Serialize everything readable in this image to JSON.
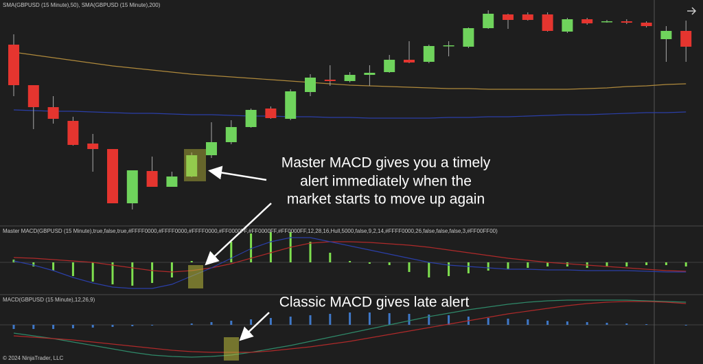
{
  "chart_data": [
    {
      "type": "candlestick",
      "title": "SMA(GBPUSD (15 Minute),50), SMA(GBPUSD (15 Minute),200)",
      "ylim": [
        0,
        330
      ],
      "open": [
        265,
        206,
        174,
        154,
        121,
        113,
        34,
        81,
        58,
        73,
        104,
        123,
        145,
        172,
        157,
        196,
        214,
        212,
        221,
        225,
        243,
        240,
        263,
        262,
        289,
        309,
        309,
        309,
        284,
        302,
        298,
        299,
        297,
        273,
        285
      ],
      "high": [
        280,
        206,
        190,
        160,
        135,
        113,
        82,
        102,
        80,
        108,
        152,
        155,
        172,
        175,
        200,
        222,
        235,
        225,
        235,
        250,
        270,
        265,
        270,
        290,
        315,
        310,
        312,
        312,
        304,
        304,
        301,
        302,
        299,
        292,
        300
      ],
      "low": [
        190,
        142,
        150,
        118,
        80,
        34,
        25,
        58,
        58,
        72,
        100,
        120,
        144,
        157,
        155,
        190,
        205,
        210,
        205,
        224,
        238,
        238,
        248,
        260,
        288,
        288,
        300,
        284,
        282,
        294,
        297,
        295,
        290,
        240,
        240
      ],
      "close": [
        206,
        174,
        157,
        119,
        113,
        34,
        82,
        58,
        73,
        104,
        123,
        145,
        170,
        158,
        197,
        217,
        212,
        221,
        224,
        243,
        239,
        263,
        264,
        289,
        310,
        301,
        301,
        285,
        302,
        296,
        299,
        297,
        292,
        285,
        262
      ],
      "up_color": "#6fd35c",
      "down_color": "#e5352f",
      "series": [
        {
          "color": "#b08a3c",
          "values": [
            254,
            250,
            246,
            242,
            238,
            234,
            231,
            228,
            225,
            222,
            220,
            218,
            216,
            214,
            212,
            210,
            208,
            206,
            205,
            204,
            203,
            202,
            201,
            201,
            200,
            200,
            200,
            200,
            200,
            201,
            202,
            204,
            205,
            207,
            208
          ]
        },
        {
          "color": "#2b3fa8",
          "values": [
            170,
            169,
            168,
            168,
            167,
            166,
            165,
            165,
            164,
            163,
            163,
            162,
            161,
            161,
            160,
            160,
            159,
            159,
            158,
            158,
            158,
            158,
            159,
            159,
            160,
            160,
            161,
            162,
            163,
            163,
            164,
            165,
            166,
            166,
            167
          ]
        }
      ],
      "annotation": [
        "Master MACD gives you a timely",
        "alert immediately when the",
        "market starts to move up again"
      ]
    },
    {
      "type": "histogram-line",
      "title": "Master MACD(GBPUSD (15 Minute),true,false,true,#FFFF0000,#FFFF0000,#FFFF0000,#FF0000FF,#FF0000FF,#FF0000FF,12,28,16,Hull,5000,false,9,2,14,#FFFF0000,26,false,false,false,3,#FF00FF00)",
      "ylim": [
        -46,
        53
      ],
      "bar_color": "#7fe04f",
      "values": [
        4,
        -6,
        -12,
        -20,
        -28,
        -32,
        -34,
        -30,
        -22,
        2,
        14,
        30,
        42,
        44,
        44,
        30,
        14,
        2,
        -2,
        -4,
        -14,
        -22,
        -20,
        -16,
        -12,
        -10,
        -8,
        -6,
        -6,
        -8,
        -6,
        -6,
        -4,
        -4,
        -6
      ],
      "series": [
        {
          "color": "#b02a2a",
          "values": [
            7,
            6,
            4,
            2,
            0,
            -4,
            -8,
            -12,
            -14,
            -12,
            -8,
            -2,
            6,
            14,
            22,
            28,
            30,
            30,
            29,
            27,
            25,
            22,
            18,
            14,
            10,
            6,
            3,
            0,
            -2,
            -4,
            -6,
            -8,
            -10,
            -12,
            -13
          ]
        },
        {
          "color": "#2b3fa8",
          "values": [
            2,
            -4,
            -12,
            -22,
            -30,
            -36,
            -38,
            -38,
            -32,
            -20,
            -8,
            6,
            20,
            30,
            36,
            36,
            30,
            24,
            18,
            12,
            6,
            0,
            -4,
            -6,
            -8,
            -10,
            -10,
            -11,
            -11,
            -12,
            -12,
            -12,
            -13,
            -14,
            -14
          ]
        }
      ]
    },
    {
      "type": "histogram-line",
      "title": "MACD(GBPUSD (15 Minute),12,26,9)",
      "ylim": [
        -57,
        44
      ],
      "bar_color": "#3f78c8",
      "values": [
        -6,
        -6,
        -6,
        -5,
        -4,
        -3,
        -2,
        -1,
        0,
        2,
        4,
        6,
        8,
        10,
        12,
        14,
        16,
        18,
        18,
        17,
        16,
        15,
        14,
        12,
        10,
        9,
        8,
        6,
        5,
        4,
        3,
        2,
        1,
        0,
        -1
      ],
      "series": [
        {
          "color": "#2f8a6a",
          "values": [
            -12,
            -16,
            -20,
            -25,
            -30,
            -35,
            -40,
            -44,
            -46,
            -47,
            -46,
            -44,
            -40,
            -35,
            -30,
            -24,
            -18,
            -12,
            -6,
            0,
            6,
            12,
            17,
            22,
            26,
            30,
            33,
            35,
            36,
            36,
            36,
            36,
            35,
            34,
            33
          ]
        },
        {
          "color": "#b02a2a",
          "values": [
            -16,
            -18,
            -20,
            -22,
            -25,
            -28,
            -31,
            -34,
            -37,
            -39,
            -40,
            -40,
            -40,
            -38,
            -35,
            -32,
            -28,
            -24,
            -19,
            -14,
            -9,
            -4,
            1,
            6,
            11,
            16,
            20,
            24,
            28,
            31,
            33,
            34,
            34,
            33,
            31
          ]
        }
      ],
      "annotation": [
        "Classic MACD gives late alert"
      ]
    }
  ],
  "footer": "© 2024 NinjaTrader, LLC"
}
